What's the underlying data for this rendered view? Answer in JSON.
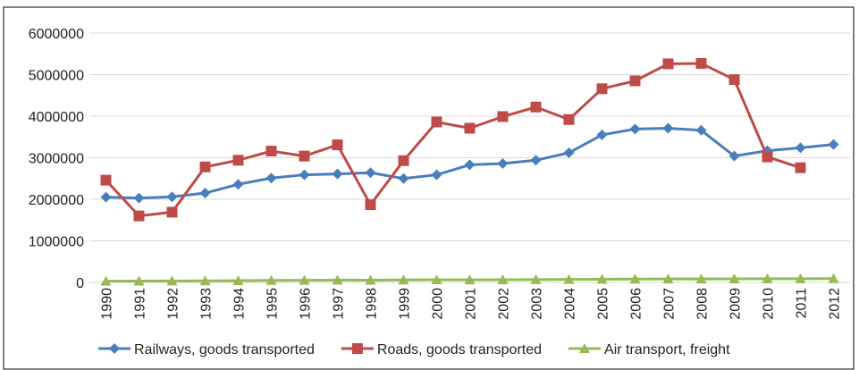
{
  "chart_data": {
    "type": "line",
    "categories": [
      "1990",
      "1991",
      "1992",
      "1993",
      "1994",
      "1995",
      "1996",
      "1997",
      "1998",
      "1999",
      "2000",
      "2001",
      "2002",
      "2003",
      "2004",
      "2005",
      "2006",
      "2007",
      "2008",
      "2009",
      "2010",
      "2011",
      "2012"
    ],
    "series": [
      {
        "name": "Railways, goods transported",
        "color": "#4a7ebb",
        "marker": "diamond",
        "values": [
          2050000,
          2030000,
          2060000,
          2150000,
          2360000,
          2510000,
          2590000,
          2610000,
          2640000,
          2500000,
          2590000,
          2830000,
          2860000,
          2940000,
          3120000,
          3550000,
          3690000,
          3710000,
          3660000,
          3040000,
          3170000,
          3240000,
          3320000
        ]
      },
      {
        "name": "Roads, goods transported",
        "color": "#be4b48",
        "marker": "square",
        "values": [
          2460000,
          1600000,
          1690000,
          2780000,
          2940000,
          3160000,
          3040000,
          3310000,
          1870000,
          2930000,
          3860000,
          3710000,
          3990000,
          4220000,
          3920000,
          4660000,
          4850000,
          5260000,
          5270000,
          4880000,
          3020000,
          2760000,
          null
        ]
      },
      {
        "name": "Air transport, freight",
        "color": "#98b954",
        "marker": "triangle",
        "values": [
          30000,
          32000,
          35000,
          38000,
          42000,
          48000,
          52000,
          56000,
          55000,
          60000,
          65000,
          62000,
          65000,
          68000,
          72000,
          76000,
          80000,
          84000,
          82000,
          86000,
          88000,
          90000,
          92000
        ]
      }
    ],
    "ylim": [
      0,
      6000000
    ],
    "yticks": [
      0,
      1000000,
      2000000,
      3000000,
      4000000,
      5000000,
      6000000
    ],
    "grid": true,
    "legend": "bottom"
  }
}
